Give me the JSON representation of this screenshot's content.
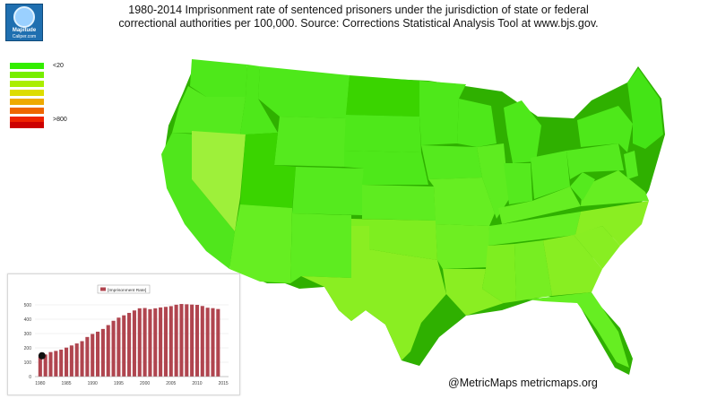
{
  "title": {
    "line1": "1980-2014 Imprisonment rate of sentenced prisoners under the jurisdiction of state or federal",
    "line2": "correctional authorities per 100,000. Source: Corrections Statistical Analysis Tool at www.bjs.gov."
  },
  "logo": {
    "line1": "Mapitude",
    "line2": "Caliper.com",
    "icon": "globe-icon"
  },
  "legend": {
    "colors": [
      "#33ee00",
      "#77ee00",
      "#aaee00",
      "#dddd00",
      "#eeaa00",
      "#ee6600",
      "#ee2200",
      "#cc0000"
    ],
    "low_label": "<20",
    "high_label": ">800"
  },
  "credit": "@MetricMaps metricmaps.org",
  "map": {
    "region": "United States",
    "colors": {
      "deep": "#3ad400",
      "green": "#4ee81a",
      "light": "#66ee22",
      "lime": "#8aee22",
      "yellowgreen": "#9ef03a"
    }
  },
  "chart_data": {
    "type": "bar",
    "legend": "Imprisonment Rate",
    "x_ticks": [
      "1980",
      "1985",
      "1990",
      "1995",
      "2000",
      "2005",
      "2010",
      "2015"
    ],
    "y_ticks": [
      "0",
      "100",
      "200",
      "300",
      "400",
      "500"
    ],
    "ylim": [
      0,
      550
    ],
    "x": [
      1980,
      1981,
      1982,
      1983,
      1984,
      1985,
      1986,
      1987,
      1988,
      1989,
      1990,
      1991,
      1992,
      1993,
      1994,
      1995,
      1996,
      1997,
      1998,
      1999,
      2000,
      2001,
      2002,
      2003,
      2004,
      2005,
      2006,
      2007,
      2008,
      2009,
      2010,
      2011,
      2012,
      2013,
      2014
    ],
    "values": [
      139,
      154,
      171,
      179,
      188,
      202,
      217,
      231,
      247,
      276,
      297,
      313,
      332,
      359,
      389,
      411,
      427,
      444,
      461,
      476,
      478,
      470,
      476,
      482,
      486,
      491,
      501,
      506,
      504,
      502,
      500,
      492,
      480,
      477,
      471
    ],
    "highlight_year": 1980,
    "bar_color": "#b0454f"
  }
}
